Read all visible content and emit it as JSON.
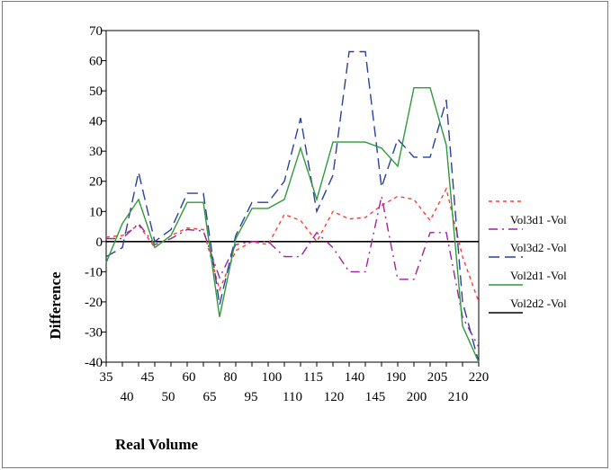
{
  "chart_data": {
    "type": "line",
    "xlabel": "Real Volume",
    "ylabel": "Difference",
    "ylim": [
      -40,
      70
    ],
    "yticks": [
      70,
      60,
      50,
      40,
      30,
      20,
      10,
      0,
      -10,
      -20,
      -30,
      -40
    ],
    "x": [
      35,
      40,
      45,
      50,
      60,
      65,
      70,
      80,
      90,
      95,
      100,
      110,
      115,
      120,
      130,
      140,
      145,
      150,
      190,
      200,
      205,
      210,
      215,
      220
    ],
    "xtick_labels_upper": [
      "35",
      "45",
      "60",
      "80",
      "100",
      "115",
      "140",
      "190",
      "205",
      "220"
    ],
    "xtick_labels_lower": [
      "40",
      "50",
      "65",
      "95",
      "110",
      "120",
      "145",
      "200",
      "210"
    ],
    "zero_line": 0,
    "grid": false,
    "legend_position": "right",
    "series": [
      {
        "name": "Vol3d1 -Vol",
        "color": "#ff3b2f",
        "dash": "short-dash",
        "values": [
          1.5,
          2,
          5.5,
          -2,
          2,
          4.5,
          4,
          -16,
          -3,
          0,
          -1,
          9,
          7,
          0,
          10,
          7.5,
          8,
          12,
          15,
          14,
          7,
          17.5,
          -5,
          -20
        ]
      },
      {
        "name": "Vol3d2 -Vol",
        "color": "#a020a0",
        "dash": "dash-dot",
        "values": [
          1,
          1,
          6,
          -1,
          1,
          4,
          3.5,
          -12,
          -1,
          0,
          0,
          -5,
          -5,
          3,
          -2,
          -10,
          -10,
          15,
          -12.5,
          -12.5,
          3,
          3,
          -25,
          -35
        ]
      },
      {
        "name": "Vol2d1 -Vol",
        "color": "#2a3fa0",
        "dash": "long-dash",
        "values": [
          -5,
          -2,
          23,
          0,
          4,
          16,
          16,
          -21,
          2,
          13,
          13,
          20,
          41,
          10,
          22,
          63,
          63,
          18,
          34,
          28,
          28,
          47,
          -20,
          -40
        ]
      },
      {
        "name": "Vol2d2 -Vol",
        "color": "#2f9a3a",
        "dash": "solid",
        "values": [
          -7,
          6,
          14,
          -2,
          2,
          13,
          13,
          -25,
          1,
          11,
          11,
          14,
          31,
          14,
          33,
          33,
          33,
          31,
          25,
          51,
          51,
          32,
          -28,
          -40
        ]
      }
    ]
  }
}
